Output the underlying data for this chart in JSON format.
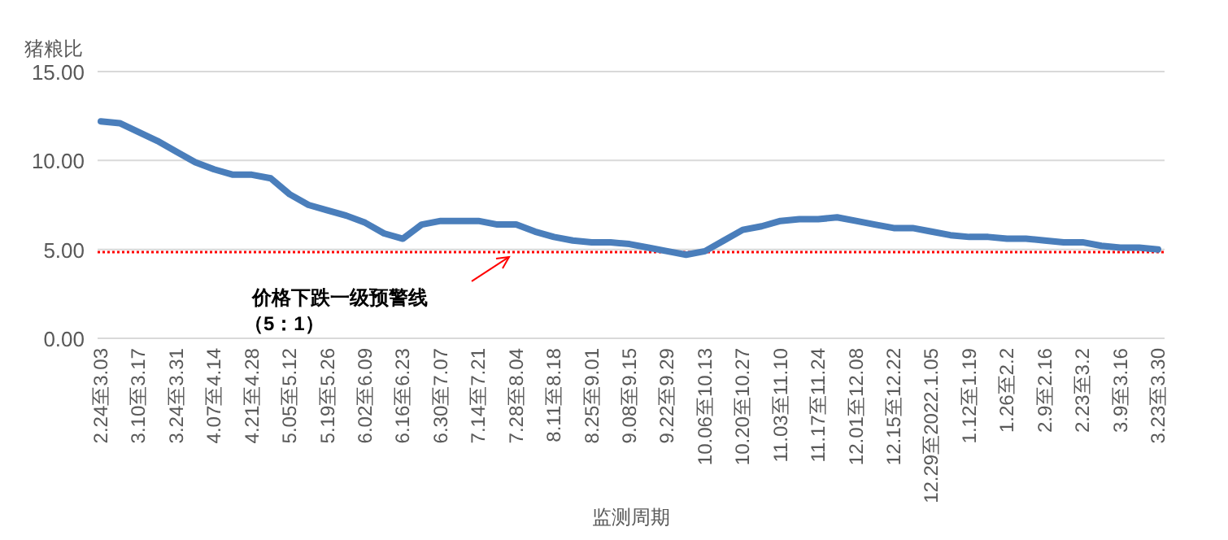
{
  "chart_data": {
    "type": "line",
    "ylabel": "猪粮比",
    "xlabel": "监测周期",
    "categories": [
      "2.24至3.03",
      null,
      "3.10至3.17",
      null,
      "3.24至3.31",
      null,
      "4.07至4.14",
      null,
      "4.21至4.28",
      null,
      "5.05至5.12",
      null,
      "5.19至5.26",
      null,
      "6.02至6.09",
      null,
      "6.16至6.23",
      null,
      "6.30至7.07",
      null,
      "7.14至7.21",
      null,
      "7.28至8.04",
      null,
      "8.11至8.18",
      null,
      "8.25至9.01",
      null,
      "9.08至9.15",
      null,
      "9.22至9.29",
      null,
      "10.06至10.13",
      null,
      "10.20至10.27",
      null,
      "11.03至11.10",
      null,
      "11.17至11.24",
      null,
      "12.01至12.08",
      null,
      "12.15至12.22",
      null,
      "12.29至2022.1.05",
      null,
      "1.12至1.19",
      null,
      "1.26至2.2",
      null,
      "2.9至2.16",
      null,
      "2.23至3.2",
      null,
      "3.9至3.16",
      null,
      "3.23至3.30"
    ],
    "series": [
      {
        "color": "#4a7ebb",
        "values": [
          12.2,
          12.1,
          11.6,
          11.1,
          10.5,
          9.9,
          9.5,
          9.2,
          9.2,
          9.0,
          8.1,
          7.5,
          7.2,
          6.9,
          6.5,
          5.9,
          5.6,
          6.4,
          6.6,
          6.6,
          6.6,
          6.4,
          6.4,
          6.0,
          5.7,
          5.5,
          5.4,
          5.4,
          5.3,
          5.1,
          4.9,
          4.7,
          4.9,
          5.5,
          6.1,
          6.3,
          6.6,
          6.7,
          6.7,
          6.8,
          6.6,
          6.4,
          6.2,
          6.2,
          6.0,
          5.8,
          5.7,
          5.7,
          5.6,
          5.6,
          5.5,
          5.4,
          5.4,
          5.2,
          5.1,
          5.1,
          5.0
        ]
      }
    ],
    "ylim": [
      0,
      15
    ],
    "yticks": [
      {
        "value": 0,
        "label": "0.00"
      },
      {
        "value": 5,
        "label": "5.00"
      },
      {
        "value": 10,
        "label": "10.00"
      },
      {
        "value": 15,
        "label": "15.00"
      }
    ],
    "grid": "y",
    "marker": "none",
    "line_style": "solid",
    "ref_lines": [
      {
        "axis": "y",
        "value": 4.85,
        "label": "价格下跌一级预警线（5：1）",
        "color": "#ff0000",
        "line_style": "dotted"
      }
    ]
  }
}
